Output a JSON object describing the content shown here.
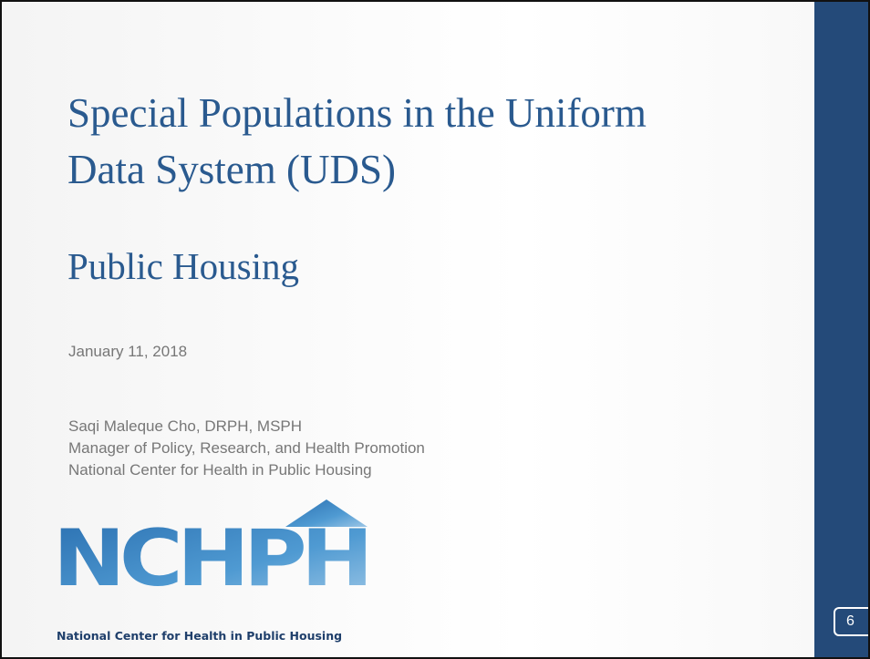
{
  "slide": {
    "title_lines": [
      "Special Populations in the Uniform",
      "Data System (UDS)"
    ],
    "subtitle": "Public Housing",
    "date": "January 11, 2018",
    "presenter": [
      "Saqi Maleque Cho, DRPH, MSPH",
      "Manager of Policy, Research, and Health Promotion",
      "National Center for Health in Public Housing"
    ],
    "logo": {
      "wordmark": "NCHPH",
      "tagline": "National Center for Health in Public Housing"
    },
    "page_number": "6"
  }
}
